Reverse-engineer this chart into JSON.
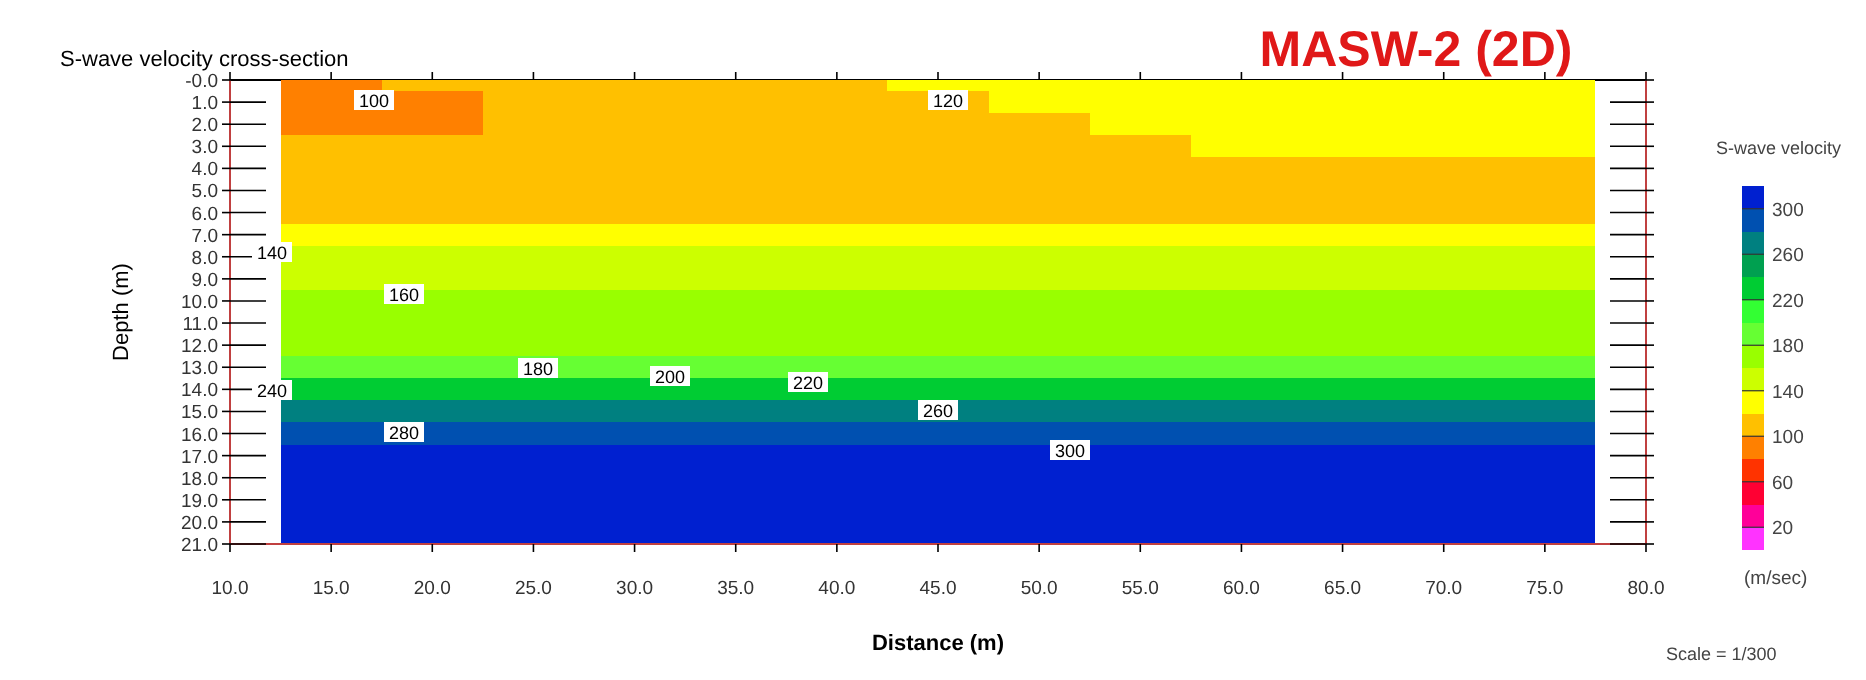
{
  "chart_data": {
    "type": "heatmap",
    "title": "S-wave velocity cross-section",
    "subtitle": "MASW-2 (2D)",
    "xlabel": "Distance (m)",
    "ylabel": "Depth (m)",
    "clabel": "S-wave velocity",
    "categories": [
      "10.0",
      "15.0",
      "20.0",
      "25.0",
      "30.0",
      "35.0",
      "40.0",
      "45.0",
      "50.0",
      "55.0",
      "60.0",
      "65.0",
      "70.0",
      "75.0",
      "80.0"
    ],
    "y_categories": [
      "-0.0",
      "1.0",
      "2.0",
      "3.0",
      "4.0",
      "5.0",
      "6.0",
      "7.0",
      "8.0",
      "9.0",
      "10.0",
      "11.0",
      "12.0",
      "13.0",
      "14.0",
      "15.0",
      "16.0",
      "17.0",
      "18.0",
      "19.0",
      "20.0",
      "21.0"
    ],
    "clim": [
      0,
      320
    ],
    "cticks": [
      20,
      60,
      100,
      140,
      180,
      220,
      260,
      300
    ],
    "cells": [
      [
        null,
        95,
        103,
        110,
        110,
        110,
        112,
        124,
        125,
        126,
        127,
        127,
        127,
        127,
        null
      ],
      [
        null,
        95,
        98,
        110,
        110,
        110,
        112,
        119,
        124,
        125,
        126,
        126,
        126,
        126,
        null
      ],
      [
        null,
        95,
        99,
        110,
        110,
        110,
        112,
        114,
        118,
        121,
        123,
        123,
        123,
        123,
        null
      ],
      [
        null,
        101,
        108,
        112,
        112,
        112,
        113,
        114,
        116,
        119,
        121,
        121,
        121,
        121,
        null
      ],
      [
        null,
        115,
        115,
        115,
        115,
        115,
        115,
        115,
        115,
        115,
        115,
        115,
        115,
        115,
        null
      ],
      [
        null,
        115,
        115,
        115,
        115,
        115,
        115,
        115,
        115,
        115,
        115,
        115,
        115,
        115,
        null
      ],
      [
        null,
        115,
        115,
        115,
        115,
        115,
        115,
        115,
        115,
        115,
        115,
        115,
        115,
        115,
        null
      ],
      [
        null,
        128,
        128,
        128,
        128,
        128,
        128,
        128,
        128,
        128,
        128,
        128,
        128,
        128,
        null
      ],
      [
        null,
        148,
        148,
        148,
        148,
        148,
        148,
        148,
        148,
        148,
        148,
        148,
        148,
        148,
        null
      ],
      [
        null,
        155,
        155,
        155,
        155,
        155,
        155,
        155,
        155,
        155,
        155,
        155,
        155,
        155,
        null
      ],
      [
        null,
        163,
        163,
        163,
        163,
        163,
        163,
        163,
        163,
        163,
        163,
        163,
        163,
        163,
        null
      ],
      [
        null,
        170,
        170,
        170,
        170,
        170,
        170,
        170,
        170,
        170,
        170,
        170,
        170,
        170,
        null
      ],
      [
        null,
        170,
        170,
        170,
        170,
        170,
        170,
        170,
        170,
        170,
        170,
        170,
        170,
        170,
        null
      ],
      [
        null,
        195,
        195,
        195,
        195,
        195,
        195,
        195,
        195,
        195,
        195,
        195,
        195,
        195,
        null
      ],
      [
        null,
        235,
        235,
        235,
        235,
        235,
        235,
        235,
        235,
        235,
        235,
        235,
        235,
        235,
        null
      ],
      [
        null,
        262,
        262,
        262,
        262,
        262,
        262,
        262,
        262,
        262,
        262,
        262,
        262,
        262,
        null
      ],
      [
        null,
        290,
        290,
        290,
        290,
        290,
        290,
        290,
        290,
        290,
        290,
        290,
        290,
        290,
        null
      ],
      [
        null,
        310,
        310,
        310,
        310,
        310,
        310,
        310,
        310,
        310,
        310,
        310,
        310,
        310,
        null
      ],
      [
        null,
        310,
        310,
        310,
        310,
        310,
        310,
        310,
        310,
        310,
        310,
        310,
        310,
        310,
        null
      ],
      [
        null,
        310,
        310,
        310,
        310,
        310,
        310,
        310,
        310,
        310,
        310,
        310,
        310,
        310,
        null
      ],
      [
        null,
        310,
        310,
        310,
        310,
        310,
        310,
        310,
        310,
        310,
        310,
        310,
        310,
        310,
        null
      ],
      [
        null,
        310,
        310,
        310,
        310,
        310,
        310,
        310,
        310,
        310,
        310,
        310,
        310,
        310,
        null
      ]
    ],
    "annotations": [
      "100",
      "120",
      "140",
      "160",
      "180",
      "200",
      "220",
      "240",
      "260",
      "280",
      "300",
      "(m/sec)",
      "Scale = 1/300"
    ]
  }
}
